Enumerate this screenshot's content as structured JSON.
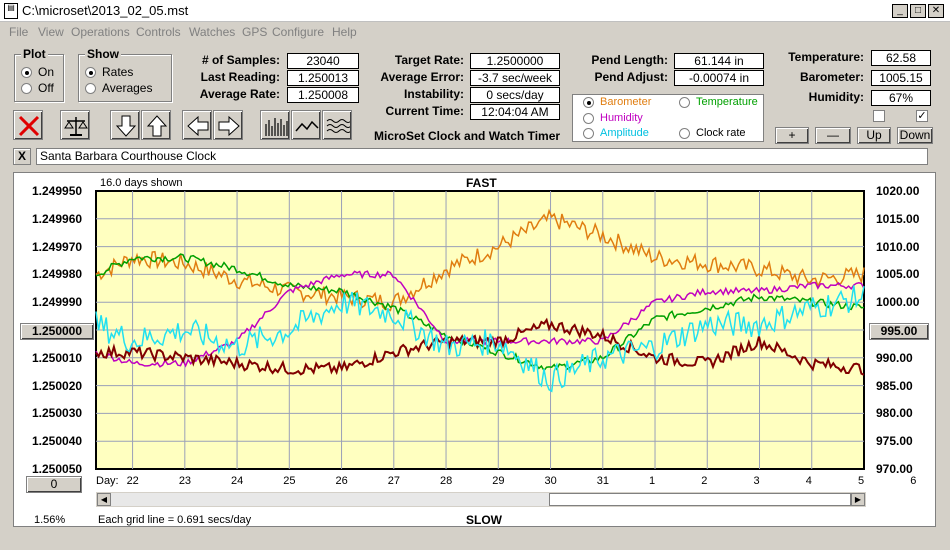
{
  "window": {
    "title": "C:\\microset\\2013_02_05.mst",
    "min_icon": "minimize-icon",
    "max_icon": "maximize-icon",
    "close_icon": "close-icon"
  },
  "menu": [
    "File",
    "View",
    "Operations",
    "Controls",
    "Watches",
    "GPS",
    "Configure",
    "Help"
  ],
  "plot_group": {
    "title": "Plot",
    "options": [
      "On",
      "Off"
    ],
    "selected": "On"
  },
  "show_group": {
    "title": "Show",
    "options": [
      "Rates",
      "Averages"
    ],
    "selected": "Rates"
  },
  "stats": {
    "samples_label": "# of Samples:",
    "samples": "23040",
    "last_label": "Last Reading:",
    "last": "1.250013",
    "avg_label": "Average Rate:",
    "avg": "1.250008",
    "target_label": "Target Rate:",
    "target": "1.2500000",
    "err_label": "Average Error:",
    "err": "-3.7 sec/week",
    "inst_label": "Instability:",
    "inst": "0 secs/day",
    "time_label": "Current Time:",
    "time": "12:04:04 AM",
    "pendlen_label": "Pend Length:",
    "pendlen": "61.144 in",
    "pendadj_label": "Pend Adjust:",
    "pendadj": "-0.00074 in",
    "temp_label": "Temperature:",
    "temp": "62.58",
    "baro_label": "Barometer:",
    "baro": "1005.15",
    "hum_label": "Humidity:",
    "hum": "67%"
  },
  "app_title": "MicroSet Clock and Watch Timer",
  "toolbar_icons": [
    "delete-icon",
    "balance-icon",
    "arrow-down-icon",
    "arrow-up-icon",
    "arrow-left-icon",
    "arrow-right-icon",
    "bar-chart-icon",
    "line-chart-icon",
    "wave-icon"
  ],
  "choices": [
    {
      "label": "Barometer",
      "color": "#e07d10",
      "selected": true
    },
    {
      "label": "Temperature",
      "color": "#00a000",
      "selected": false
    },
    {
      "label": "Humidity",
      "color": "#c000c0",
      "selected": false
    },
    {
      "label": "Clock rate",
      "color": "#000000",
      "selected": false
    },
    {
      "label": "Amplitude",
      "color": "#00c0e0",
      "selected": false
    }
  ],
  "scale_buttons": [
    "+",
    "—",
    "Up",
    "Down"
  ],
  "checkboxes": [
    false,
    true
  ],
  "clock_name_close": "X",
  "clock_name": "Santa Barbara Courthouse Clock",
  "graph": {
    "days_shown": "16.0 days shown",
    "fast": "FAST",
    "slow": "SLOW",
    "left_ticks": [
      "1.249950",
      "1.249960",
      "1.249970",
      "1.249980",
      "1.249990",
      "1.250000",
      "1.250010",
      "1.250020",
      "1.250030",
      "1.250040",
      "1.250050"
    ],
    "right_ticks": [
      "1020.00",
      "1015.00",
      "1010.00",
      "1005.00",
      "1000.00",
      "995.00",
      "990.00",
      "985.00",
      "980.00",
      "975.00",
      "970.00"
    ],
    "left_center_btn": "1.250000",
    "right_center_btn": "995.00",
    "day_label": "Day:",
    "days": [
      "22",
      "23",
      "24",
      "25",
      "26",
      "27",
      "28",
      "29",
      "30",
      "31",
      "1",
      "2",
      "3",
      "4",
      "5",
      "6"
    ],
    "zero_btn": "0",
    "percent": "1.56%",
    "grid_note": "Each grid line = 0.691 secs/day",
    "scroll_left_icon": "scroll-left-icon",
    "scroll_right_icon": "scroll-right-icon"
  },
  "chart_data": {
    "type": "line",
    "x": [
      21.3,
      22,
      23,
      24,
      25,
      26,
      27,
      28,
      29,
      30,
      31,
      32,
      33,
      34,
      35,
      36
    ],
    "series": [
      {
        "name": "Barometer",
        "color": "#e07d10",
        "values": [
          1005,
          1008,
          1007,
          1004,
          1002,
          1001,
          1000,
          1006,
          1010,
          1015,
          1012,
          1008,
          1007,
          1006,
          1004,
          1005
        ]
      },
      {
        "name": "Temperature",
        "color": "#00a000",
        "values": [
          1005,
          1008,
          1008,
          1006,
          1003,
          1002,
          999,
          994,
          991,
          988,
          990,
          997,
          999,
          1001,
          1000,
          999
        ]
      },
      {
        "name": "Humidity",
        "color": "#c000c0",
        "values": [
          991,
          989,
          989,
          993,
          1002,
          1005,
          1005,
          993,
          993,
          993,
          993,
          1000,
          1002,
          1002,
          1003,
          1003
        ]
      },
      {
        "name": "Clock rate",
        "color": "#800000",
        "values": [
          991,
          991,
          990,
          989,
          988,
          988,
          991,
          993,
          993,
          996,
          994,
          990,
          989,
          993,
          989,
          988
        ]
      },
      {
        "name": "Amplitude",
        "color": "#20e0f0",
        "values": [
          996,
          993,
          995,
          992,
          995,
          1000,
          998,
          992,
          993,
          986,
          990,
          992,
          996,
          996,
          999,
          1001
        ]
      }
    ],
    "ylim_right": [
      970,
      1020
    ],
    "ylim_left": [
      1.24995,
      1.25005
    ],
    "grid": true,
    "title": "FAST",
    "xlabel": "Day:"
  }
}
